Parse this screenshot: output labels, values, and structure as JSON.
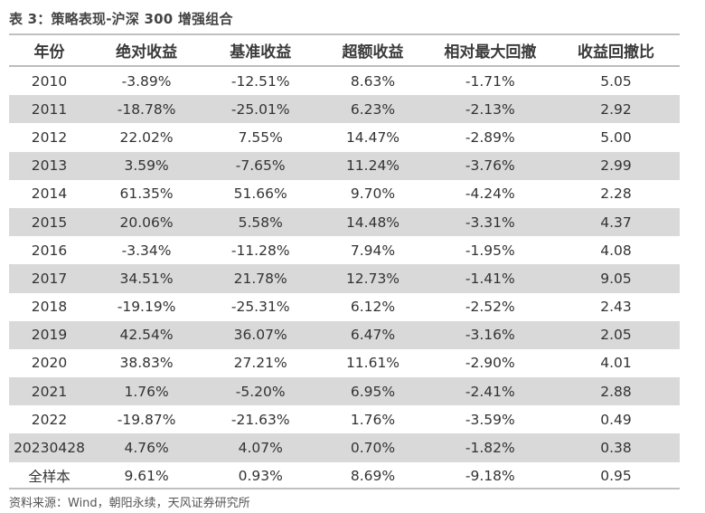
{
  "caption": "表 3：策略表现-沪深 300 增强组合",
  "headers": [
    "年份",
    "绝对收益",
    "基准收益",
    "超额收益",
    "相对最大回撤",
    "收益回撤比"
  ],
  "rows": [
    [
      "2010",
      "-3.89%",
      "-12.51%",
      "8.63%",
      "-1.71%",
      "5.05"
    ],
    [
      "2011",
      "-18.78%",
      "-25.01%",
      "6.23%",
      "-2.13%",
      "2.92"
    ],
    [
      "2012",
      "22.02%",
      "7.55%",
      "14.47%",
      "-2.89%",
      "5.00"
    ],
    [
      "2013",
      "3.59%",
      "-7.65%",
      "11.24%",
      "-3.76%",
      "2.99"
    ],
    [
      "2014",
      "61.35%",
      "51.66%",
      "9.70%",
      "-4.24%",
      "2.28"
    ],
    [
      "2015",
      "20.06%",
      "5.58%",
      "14.48%",
      "-3.31%",
      "4.37"
    ],
    [
      "2016",
      "-3.34%",
      "-11.28%",
      "7.94%",
      "-1.95%",
      "4.08"
    ],
    [
      "2017",
      "34.51%",
      "21.78%",
      "12.73%",
      "-1.41%",
      "9.05"
    ],
    [
      "2018",
      "-19.19%",
      "-25.31%",
      "6.12%",
      "-2.52%",
      "2.43"
    ],
    [
      "2019",
      "42.54%",
      "36.07%",
      "6.47%",
      "-3.16%",
      "2.05"
    ],
    [
      "2020",
      "38.83%",
      "27.21%",
      "11.61%",
      "-2.90%",
      "4.01"
    ],
    [
      "2021",
      "1.76%",
      "-5.20%",
      "6.95%",
      "-2.41%",
      "2.88"
    ],
    [
      "2022",
      "-19.87%",
      "-21.63%",
      "1.76%",
      "-3.59%",
      "0.49"
    ],
    [
      "20230428",
      "4.76%",
      "4.07%",
      "0.70%",
      "-1.82%",
      "0.38"
    ],
    [
      "全样本",
      "9.61%",
      "0.93%",
      "8.69%",
      "-9.18%",
      "0.95"
    ]
  ],
  "source": "资料来源：Wind，朝阳永续，天风证券研究所",
  "colors": {
    "shade": "#d9d9d9",
    "rule": "#c0c0c0"
  }
}
